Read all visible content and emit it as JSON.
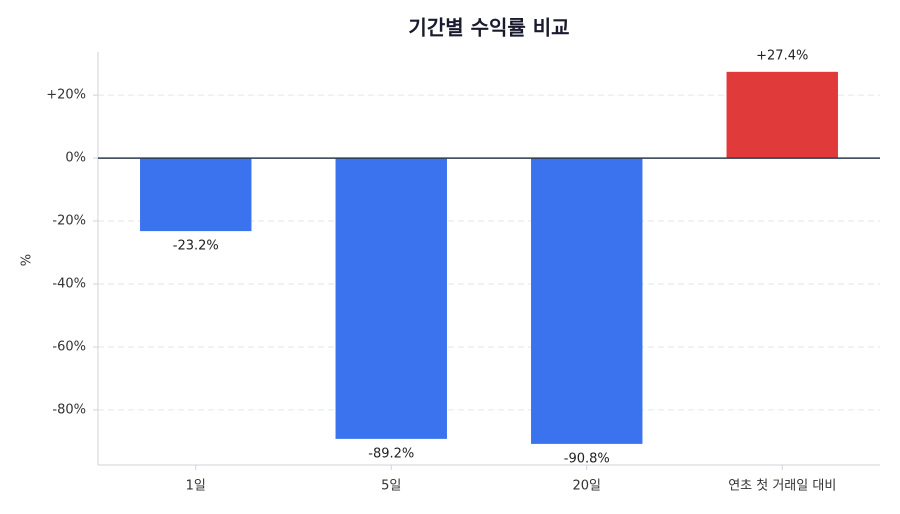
{
  "chart_data": {
    "type": "bar",
    "title": "기간별 수익률 비교",
    "y_label": "%",
    "categories": [
      "1일",
      "5일",
      "20일",
      "연초 첫 거래일 대비"
    ],
    "values": [
      -23.2,
      -89.2,
      -90.8,
      27.4
    ],
    "value_labels": [
      "-23.2%",
      "-89.2%",
      "-90.8%",
      "+27.4%"
    ],
    "colors": [
      "#3b73ee",
      "#3b73ee",
      "#3b73ee",
      "#e03a3a"
    ],
    "ylim": [
      -97.5,
      33.7
    ],
    "yticks": [
      {
        "value": -80,
        "label": "-80%"
      },
      {
        "value": -60,
        "label": "-60%"
      },
      {
        "value": -40,
        "label": "-40%"
      },
      {
        "value": -20,
        "label": "-20%"
      },
      {
        "value": 0,
        "label": "0%"
      },
      {
        "value": 20,
        "label": "+20%"
      }
    ],
    "grid": true
  }
}
